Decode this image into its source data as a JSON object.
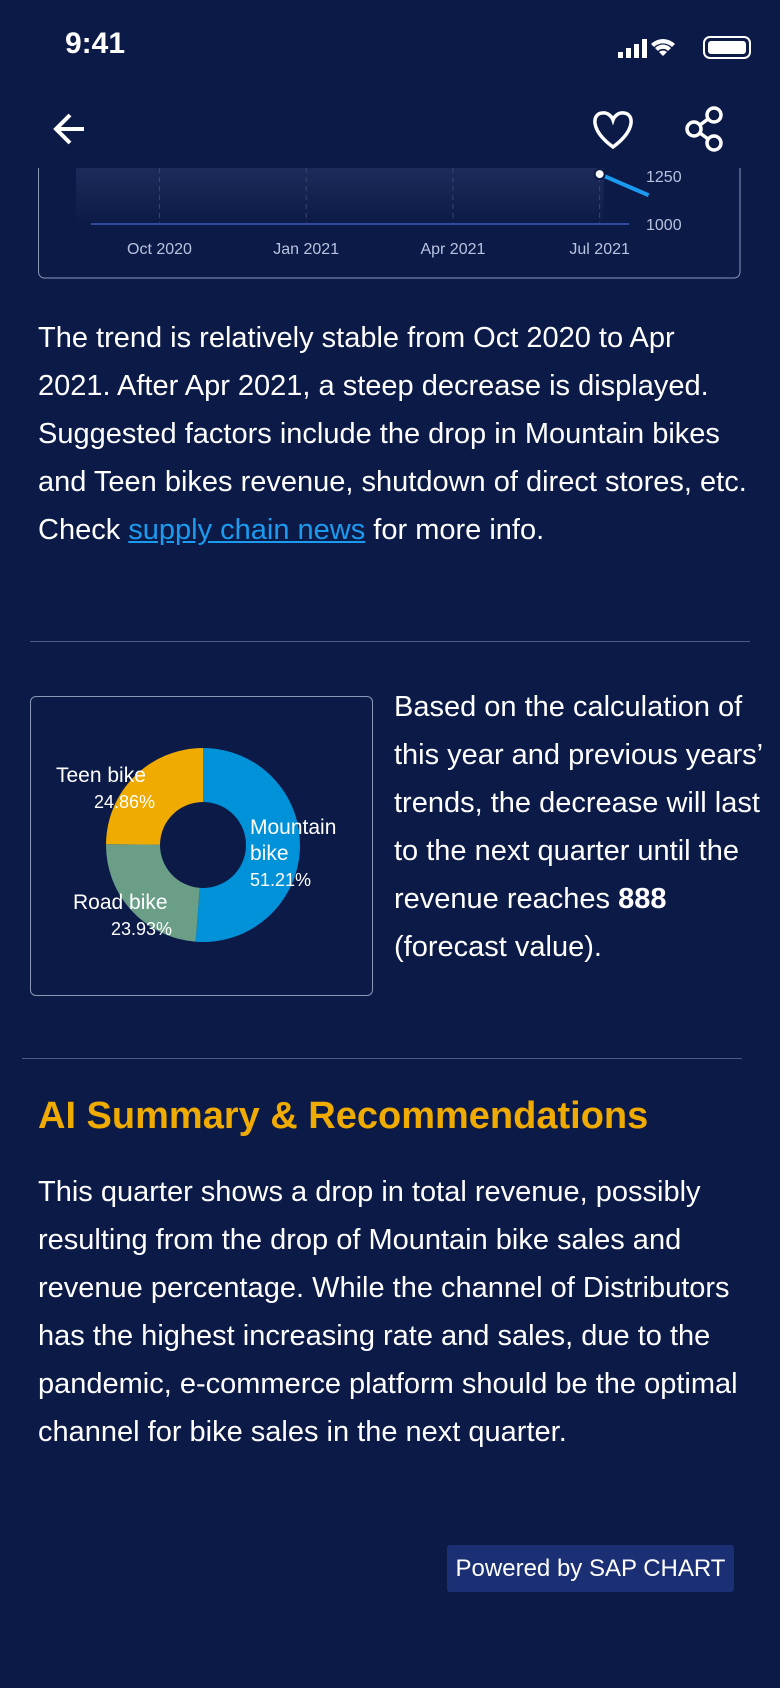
{
  "status": {
    "time": "9:41"
  },
  "trend_chart": {
    "type": "line",
    "xticks": [
      {
        "value": 0,
        "label": "Oct 2020"
      },
      {
        "value": 3,
        "label": "Jan 2021"
      },
      {
        "value": 6,
        "label": "Apr 2021"
      },
      {
        "value": 9,
        "label": "Jul 2021"
      }
    ],
    "xlim": [
      -1.4,
      9.6
    ],
    "yticks": [
      1000,
      1250
    ],
    "ylim": [
      1000,
      1300
    ],
    "series": [
      {
        "color": "#1b9bf0",
        "x": [
          9,
          10
        ],
        "values": [
          1260,
          1150
        ]
      }
    ]
  },
  "trend_text": {
    "before": "The trend is relatively stable from Oct 2020 to Apr 2021. After Apr 2021, a steep decrease is displayed. Suggested factors include the drop in Mountain bikes and Teen bikes revenue, shutdown of direct stores, etc. Check ",
    "link": "supply chain news",
    "after": " for more info."
  },
  "donut": {
    "type": "pie",
    "categories": [
      "Mountain bike",
      "Road bike",
      "Teen bike"
    ],
    "values": [
      51.21,
      23.93,
      24.86
    ],
    "value_labels": [
      "51.21%",
      "23.93%",
      "24.86%"
    ],
    "colors": [
      "#0092d9",
      "#6a9e87",
      "#f0ab00"
    ]
  },
  "forecast_text": {
    "before": "Based on the calculation of this year and previous years’ trends, the decrease will last to the next quarter until the revenue reaches ",
    "value": 888,
    "after": " (forecast value)."
  },
  "summary": {
    "title": "AI Summary & Recommendations",
    "text": "This quarter shows a drop in total revenue, possibly resulting from the drop of Mountain bike sales and revenue percentage. While the channel of Distributors has the highest increasing rate and sales, due to the pandemic, e-commerce platform should be the optimal channel for bike sales in the next quarter."
  },
  "footer": {
    "button": "Powered by SAP CHART"
  }
}
